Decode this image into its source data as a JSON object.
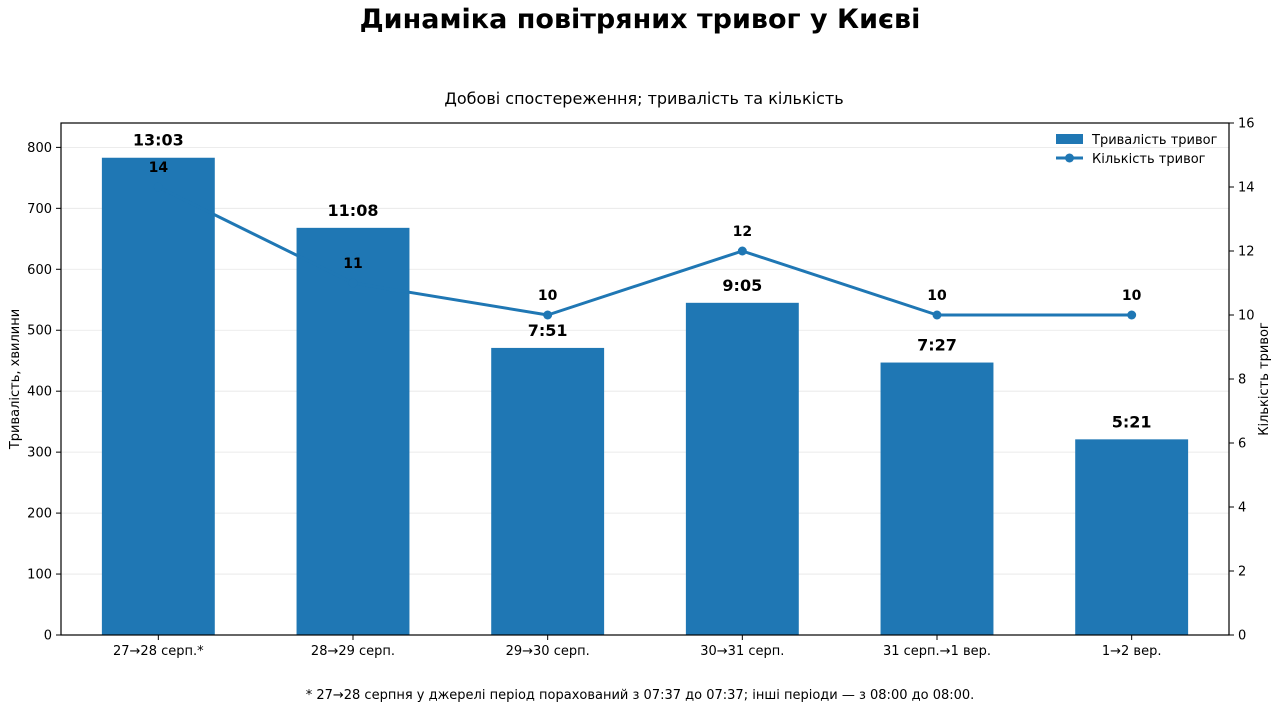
{
  "chart_data": {
    "type": "bar",
    "title": "Динаміка повітряних тривог у Києві",
    "subtitle": "Добові спостереження; тривалість та кількість",
    "footnote": "* 27→28 серпня у джерелі період порахований з 07:37 до 07:37; інші періоди — з 08:00 до 08:00.",
    "categories": [
      "27→28 серп.*",
      "28→29 серп.",
      "29→30 серп.",
      "30→31 серп.",
      "31 серп.→1 вер.",
      "1→2 вер."
    ],
    "ylabel": "Тривалість, хвилини",
    "y2label": "Кількість тривог",
    "ylim": [
      0,
      840
    ],
    "y2lim": [
      0,
      16
    ],
    "yticks": [
      0,
      100,
      200,
      300,
      400,
      500,
      600,
      700,
      800
    ],
    "y2ticks": [
      0,
      2,
      4,
      6,
      8,
      10,
      12,
      14,
      16
    ],
    "grid": true,
    "legend_position": "top-right",
    "series": [
      {
        "name": "Тривалість тривог",
        "type": "bar",
        "axis": "left",
        "values": [
          783,
          668,
          471,
          545,
          447,
          321
        ],
        "labels": [
          "13:03",
          "11:08",
          "7:51",
          "9:05",
          "7:27",
          "5:21"
        ],
        "color": "#1f77b4"
      },
      {
        "name": "Кількість тривог",
        "type": "line",
        "axis": "right",
        "values": [
          14,
          11,
          10,
          12,
          10,
          10
        ],
        "labels": [
          "14",
          "11",
          "10",
          "12",
          "10",
          "10"
        ],
        "color": "#1f77b4"
      }
    ]
  }
}
